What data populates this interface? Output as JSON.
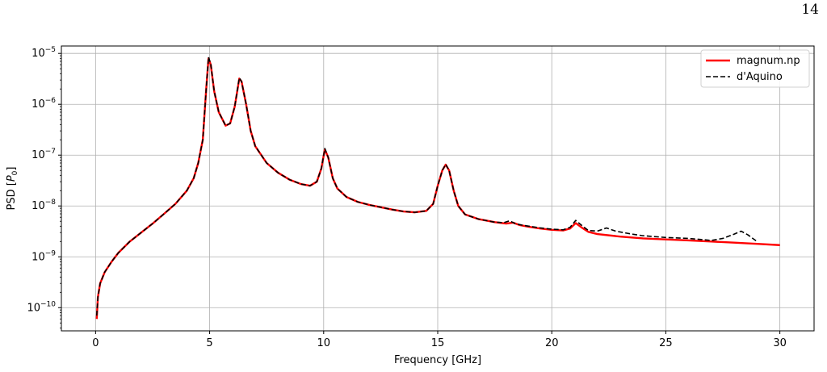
{
  "page": {
    "number": "14"
  },
  "chart_data": {
    "type": "line",
    "title": "",
    "xlabel": "Frequency [GHz]",
    "ylabel_prefix": "PSD [",
    "ylabel_var": "P",
    "ylabel_sub": "0",
    "ylabel_suffix": "]",
    "xlim": [
      -1.5,
      31.5
    ],
    "ylim": [
      3.5e-11,
      1.4e-05
    ],
    "yscale": "log",
    "grid": true,
    "legend_position": "top-right",
    "xticks": [
      0,
      5,
      10,
      15,
      20,
      25,
      30
    ],
    "yticks": [
      {
        "base": "10",
        "exp": "−10",
        "value": 1e-10
      },
      {
        "base": "10",
        "exp": "−9",
        "value": 1e-09
      },
      {
        "base": "10",
        "exp": "−8",
        "value": 1e-08
      },
      {
        "base": "10",
        "exp": "−7",
        "value": 1e-07
      },
      {
        "base": "10",
        "exp": "−6",
        "value": 1e-06
      },
      {
        "base": "10",
        "exp": "−5",
        "value": 1e-05
      }
    ],
    "series": [
      {
        "name": "magnum.np",
        "color": "#ff0000",
        "style": "solid",
        "points": [
          [
            0.05,
            6e-11
          ],
          [
            0.1,
            1.6e-10
          ],
          [
            0.2,
            3e-10
          ],
          [
            0.4,
            5e-10
          ],
          [
            0.7,
            8e-10
          ],
          [
            1.0,
            1.2e-09
          ],
          [
            1.5,
            2e-09
          ],
          [
            2.0,
            3e-09
          ],
          [
            2.5,
            4.5e-09
          ],
          [
            3.0,
            7e-09
          ],
          [
            3.5,
            1.1e-08
          ],
          [
            4.0,
            2e-08
          ],
          [
            4.3,
            3.5e-08
          ],
          [
            4.5,
            7e-08
          ],
          [
            4.7,
            2e-07
          ],
          [
            4.85,
            2e-06
          ],
          [
            4.95,
            8e-06
          ],
          [
            5.05,
            6e-06
          ],
          [
            5.2,
            1.8e-06
          ],
          [
            5.4,
            7e-07
          ],
          [
            5.7,
            3.8e-07
          ],
          [
            5.9,
            4.2e-07
          ],
          [
            6.1,
            9e-07
          ],
          [
            6.3,
            3.2e-06
          ],
          [
            6.4,
            2.8e-06
          ],
          [
            6.6,
            1e-06
          ],
          [
            6.8,
            3e-07
          ],
          [
            7.0,
            1.5e-07
          ],
          [
            7.5,
            7e-08
          ],
          [
            8.0,
            4.5e-08
          ],
          [
            8.5,
            3.3e-08
          ],
          [
            9.0,
            2.7e-08
          ],
          [
            9.4,
            2.5e-08
          ],
          [
            9.7,
            3e-08
          ],
          [
            9.9,
            5.5e-08
          ],
          [
            10.05,
            1.3e-07
          ],
          [
            10.2,
            9e-08
          ],
          [
            10.4,
            3.5e-08
          ],
          [
            10.6,
            2.2e-08
          ],
          [
            11.0,
            1.5e-08
          ],
          [
            11.5,
            1.2e-08
          ],
          [
            12.0,
            1.05e-08
          ],
          [
            13.0,
            8.5e-09
          ],
          [
            13.5,
            7.8e-09
          ],
          [
            14.0,
            7.5e-09
          ],
          [
            14.5,
            8e-09
          ],
          [
            14.8,
            1.1e-08
          ],
          [
            15.0,
            2.5e-08
          ],
          [
            15.2,
            5e-08
          ],
          [
            15.35,
            6.5e-08
          ],
          [
            15.5,
            5e-08
          ],
          [
            15.7,
            2e-08
          ],
          [
            15.9,
            1e-08
          ],
          [
            16.2,
            6.8e-09
          ],
          [
            16.8,
            5.5e-09
          ],
          [
            17.5,
            4.8e-09
          ],
          [
            18.0,
            4.5e-09
          ],
          [
            18.3,
            4.7e-09
          ],
          [
            18.6,
            4.2e-09
          ],
          [
            19.0,
            3.9e-09
          ],
          [
            19.5,
            3.6e-09
          ],
          [
            20.0,
            3.4e-09
          ],
          [
            20.5,
            3.3e-09
          ],
          [
            20.8,
            3.6e-09
          ],
          [
            21.05,
            4.6e-09
          ],
          [
            21.3,
            3.8e-09
          ],
          [
            21.6,
            3.1e-09
          ],
          [
            22.0,
            2.8e-09
          ],
          [
            23.0,
            2.5e-09
          ],
          [
            24.0,
            2.3e-09
          ],
          [
            25.0,
            2.2e-09
          ],
          [
            26.0,
            2.1e-09
          ],
          [
            27.0,
            2e-09
          ],
          [
            28.0,
            1.9e-09
          ],
          [
            29.0,
            1.8e-09
          ],
          [
            30.0,
            1.7e-09
          ]
        ]
      },
      {
        "name": "d'Aquino",
        "color": "#000000",
        "style": "dashed",
        "points": [
          [
            0.05,
            7e-11
          ],
          [
            0.1,
            1.6e-10
          ],
          [
            0.2,
            3e-10
          ],
          [
            0.4,
            5e-10
          ],
          [
            0.7,
            8e-10
          ],
          [
            1.0,
            1.2e-09
          ],
          [
            1.5,
            2e-09
          ],
          [
            2.0,
            3e-09
          ],
          [
            2.5,
            4.5e-09
          ],
          [
            3.0,
            7e-09
          ],
          [
            3.5,
            1.1e-08
          ],
          [
            4.0,
            2e-08
          ],
          [
            4.3,
            3.5e-08
          ],
          [
            4.5,
            7e-08
          ],
          [
            4.7,
            2e-07
          ],
          [
            4.85,
            2e-06
          ],
          [
            4.95,
            8.5e-06
          ],
          [
            5.05,
            6.2e-06
          ],
          [
            5.2,
            1.8e-06
          ],
          [
            5.4,
            7e-07
          ],
          [
            5.7,
            3.8e-07
          ],
          [
            5.9,
            4.2e-07
          ],
          [
            6.1,
            9e-07
          ],
          [
            6.3,
            3.3e-06
          ],
          [
            6.4,
            2.8e-06
          ],
          [
            6.6,
            1e-06
          ],
          [
            6.8,
            3e-07
          ],
          [
            7.0,
            1.5e-07
          ],
          [
            7.5,
            7e-08
          ],
          [
            8.0,
            4.5e-08
          ],
          [
            8.5,
            3.3e-08
          ],
          [
            9.0,
            2.7e-08
          ],
          [
            9.4,
            2.5e-08
          ],
          [
            9.7,
            3e-08
          ],
          [
            9.9,
            5.5e-08
          ],
          [
            10.05,
            1.35e-07
          ],
          [
            10.2,
            9e-08
          ],
          [
            10.4,
            3.5e-08
          ],
          [
            10.6,
            2.2e-08
          ],
          [
            11.0,
            1.5e-08
          ],
          [
            11.5,
            1.2e-08
          ],
          [
            12.0,
            1.05e-08
          ],
          [
            13.0,
            8.5e-09
          ],
          [
            13.5,
            7.8e-09
          ],
          [
            14.0,
            7.5e-09
          ],
          [
            14.5,
            8e-09
          ],
          [
            14.8,
            1.1e-08
          ],
          [
            15.0,
            2.5e-08
          ],
          [
            15.2,
            5e-08
          ],
          [
            15.35,
            6.6e-08
          ],
          [
            15.5,
            5e-08
          ],
          [
            15.7,
            2e-08
          ],
          [
            15.9,
            1e-08
          ],
          [
            16.2,
            6.8e-09
          ],
          [
            16.8,
            5.5e-09
          ],
          [
            17.5,
            4.8e-09
          ],
          [
            17.9,
            4.7e-09
          ],
          [
            18.15,
            5.1e-09
          ],
          [
            18.4,
            4.5e-09
          ],
          [
            18.7,
            4.2e-09
          ],
          [
            19.0,
            4e-09
          ],
          [
            19.5,
            3.7e-09
          ],
          [
            20.0,
            3.5e-09
          ],
          [
            20.5,
            3.4e-09
          ],
          [
            20.8,
            3.8e-09
          ],
          [
            21.05,
            5.2e-09
          ],
          [
            21.3,
            4.2e-09
          ],
          [
            21.6,
            3.3e-09
          ],
          [
            22.0,
            3.2e-09
          ],
          [
            22.4,
            3.7e-09
          ],
          [
            22.8,
            3.2e-09
          ],
          [
            23.5,
            2.8e-09
          ],
          [
            24.0,
            2.6e-09
          ],
          [
            25.0,
            2.4e-09
          ],
          [
            26.0,
            2.3e-09
          ],
          [
            27.0,
            2.1e-09
          ],
          [
            27.5,
            2.3e-09
          ],
          [
            28.0,
            2.8e-09
          ],
          [
            28.3,
            3.2e-09
          ],
          [
            28.6,
            2.7e-09
          ],
          [
            29.0,
            2e-09
          ]
        ]
      }
    ]
  }
}
